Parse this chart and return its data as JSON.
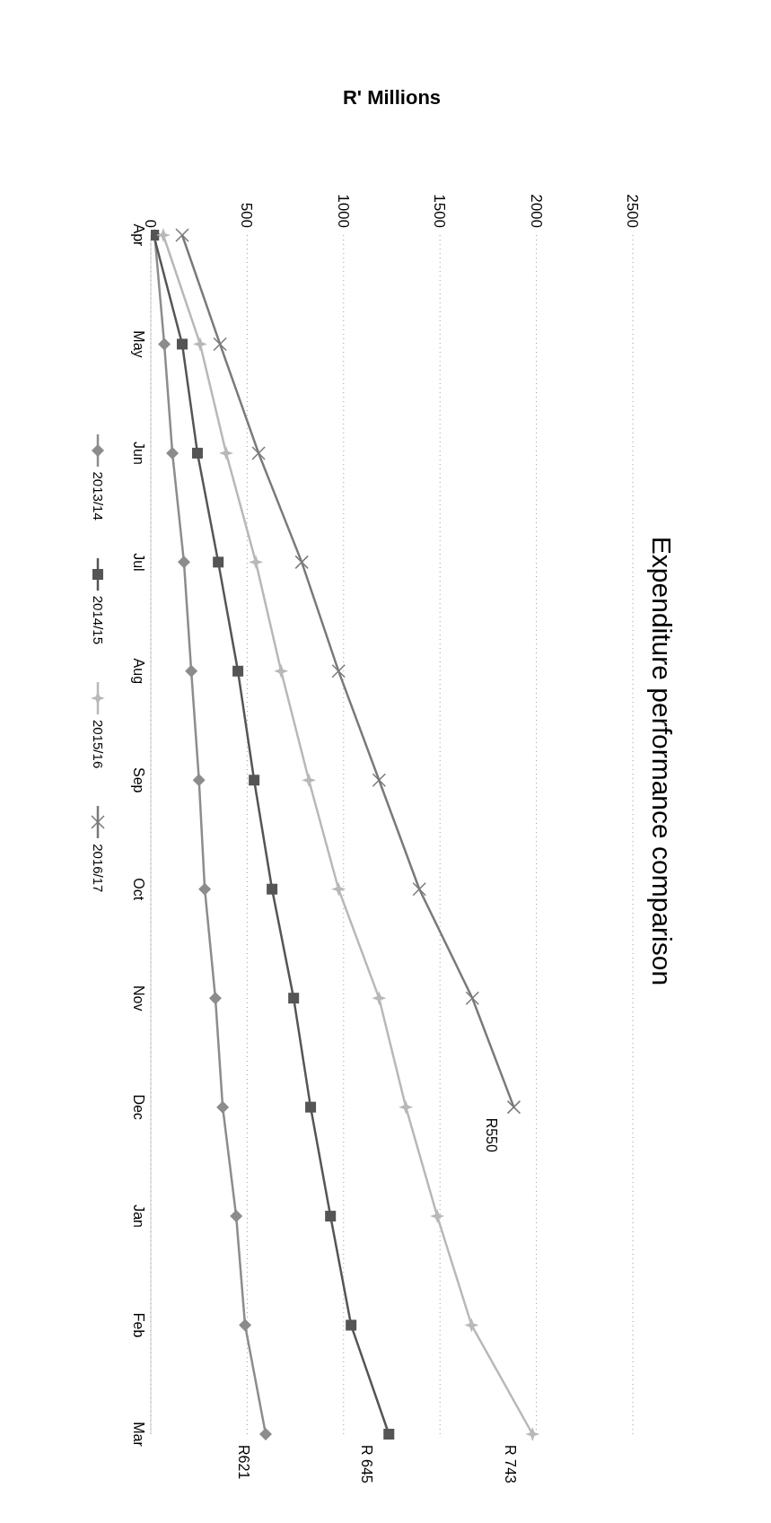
{
  "chart_data": {
    "type": "line",
    "orientation": "horizontal",
    "title": "Expenditure performance comparison",
    "xlabel": "R' Millions",
    "categories": [
      "Apr",
      "May",
      "Jun",
      "Jul",
      "Aug",
      "Sep",
      "Oct",
      "Nov",
      "Dec",
      "Jan",
      "Feb",
      "Mar"
    ],
    "series": [
      {
        "name": "2013/14",
        "color": "#8c8c8c",
        "marker": "diamond",
        "values": [
          20,
          70,
          112,
          172,
          210,
          250,
          280,
          335,
          373,
          443,
          489,
          596
        ]
      },
      {
        "name": "2014/15",
        "color": "#555555",
        "marker": "square",
        "values": [
          15,
          163,
          242,
          350,
          452,
          536,
          629,
          741,
          829,
          932,
          1039,
          1235
        ]
      },
      {
        "name": "2015/16",
        "color": "#b8b8b8",
        "marker": "star",
        "values": [
          65,
          256,
          391,
          545,
          676,
          820,
          974,
          1184,
          1323,
          1486,
          1664,
          1980
        ]
      },
      {
        "name": "2016/17",
        "color": "#7a7a7a",
        "marker": "cross",
        "values": [
          163,
          359,
          559,
          783,
          974,
          1184,
          1393,
          1668,
          1883,
          null,
          null,
          null
        ]
      }
    ],
    "xlim": [
      0,
      2500
    ],
    "xticks": [
      0,
      500,
      1000,
      1500,
      2000,
      2500
    ],
    "grid": "x",
    "legend": "left",
    "annotations": [
      {
        "text": "R550",
        "x": 1883,
        "y": "Dec"
      },
      {
        "text": "R 743",
        "x": 1980,
        "y": "Mar"
      },
      {
        "text": "R 645",
        "x": 1235,
        "y": "Mar"
      },
      {
        "text": "R621",
        "x": 596,
        "y": "Mar"
      }
    ]
  }
}
